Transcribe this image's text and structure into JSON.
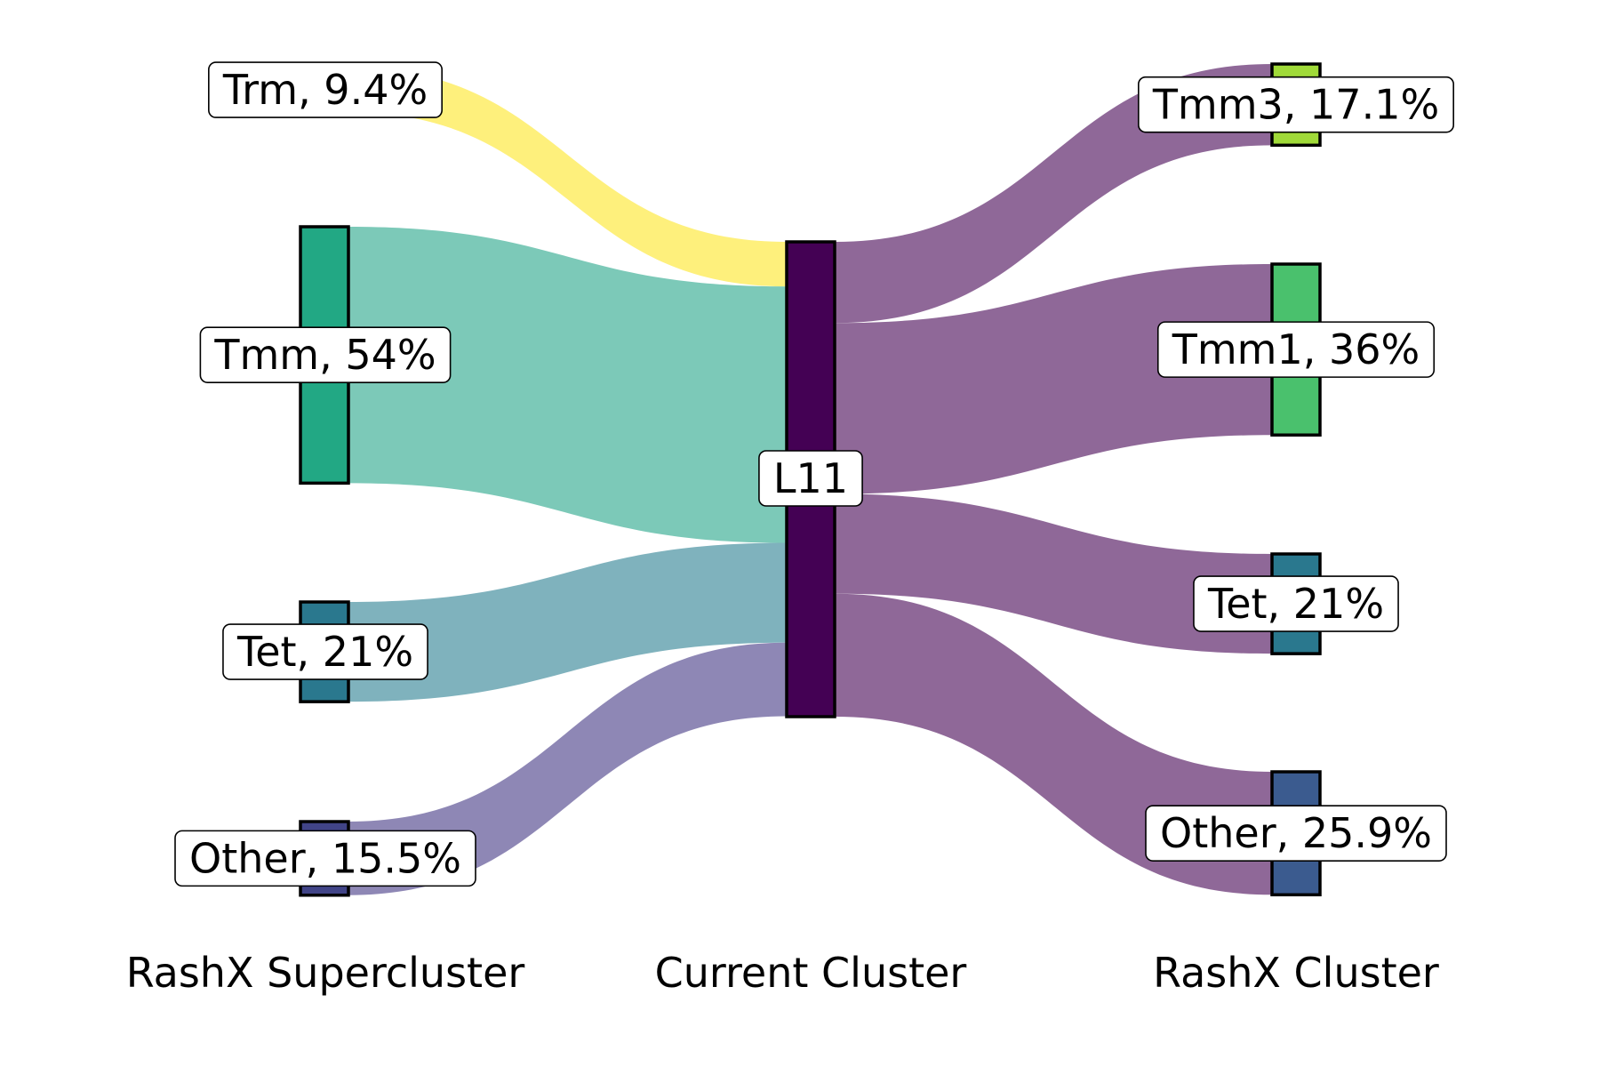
{
  "column_titles": {
    "left": "RashX Supercluster",
    "center": "Current Cluster",
    "right": "RashX Cluster"
  },
  "center_node": {
    "label": "L11",
    "color": "#440154"
  },
  "source_nodes": [
    {
      "label": "Trm, 9.4%",
      "share": 9.4,
      "color": "#fde725",
      "flow_color": "#fef07c"
    },
    {
      "label": "Tmm, 54%",
      "share": 54.0,
      "color": "#22a884",
      "flow_color": "#7cc9b8"
    },
    {
      "label": "Tet, 21%",
      "share": 21.0,
      "color": "#2a788e",
      "flow_color": "#7fb2bd"
    },
    {
      "label": "Other, 15.5%",
      "share": 15.5,
      "color": "#414487",
      "flow_color": "#8e87b5"
    }
  ],
  "target_nodes": [
    {
      "label": "Tmm3, 17.1%",
      "share": 17.1,
      "color": "#a0da39"
    },
    {
      "label": "Tmm1, 36%",
      "share": 36.0,
      "color": "#4ac16d"
    },
    {
      "label": "Tet, 21%",
      "share": 21.0,
      "color": "#2a788e"
    },
    {
      "label": "Other, 25.9%",
      "share": 25.9,
      "color": "#3b5b8f"
    }
  ],
  "target_flow_color": "#8f6898"
}
